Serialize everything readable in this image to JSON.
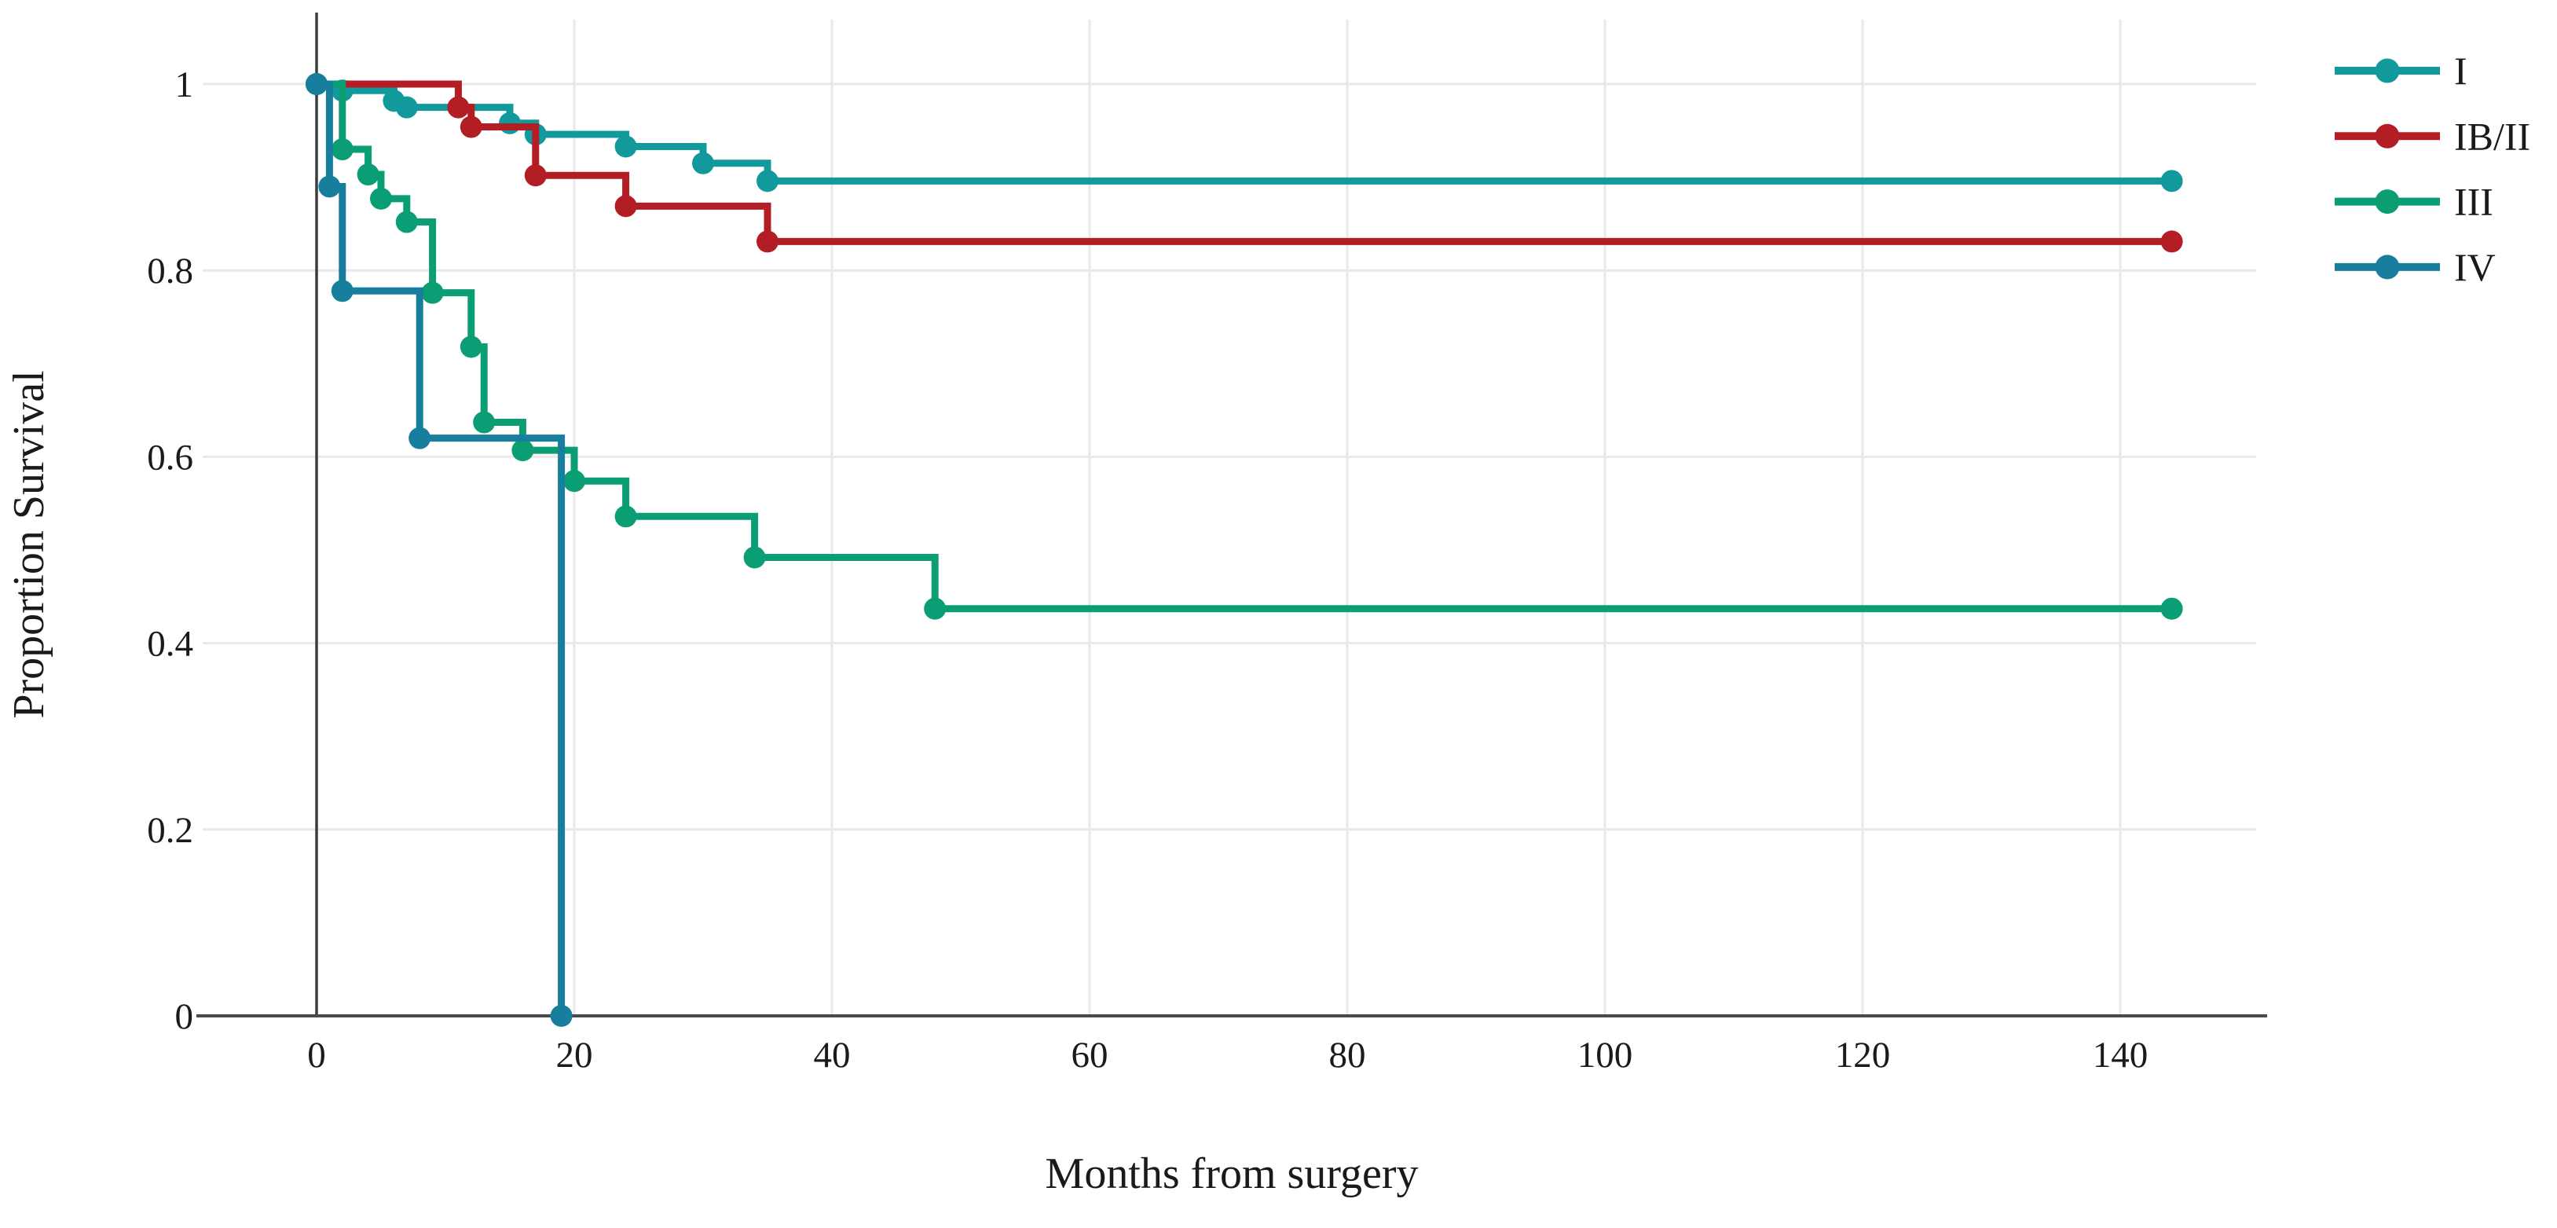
{
  "page": {
    "background": "#ffffff"
  },
  "chart_data": {
    "type": "line",
    "variant": "kaplan_meier_step",
    "title": "",
    "xlabel": "Months from surgery",
    "ylabel": "Proportion Survival",
    "xlim": [
      -9,
      150
    ],
    "ylim": [
      0,
      1
    ],
    "xticks": [
      0,
      20,
      40,
      60,
      80,
      100,
      120,
      140
    ],
    "yticks": [
      0,
      0.2,
      0.4,
      0.6,
      0.8,
      1
    ],
    "ytick_labels": [
      "0",
      "0.2",
      "0.4",
      "0.6",
      "0.8",
      "1"
    ],
    "grid": true,
    "legend_position": "top-right-outside",
    "marker": "circle",
    "theme": {
      "grid_color": "#e9e9e9",
      "axis_color": "#4a4a4a",
      "zero_line_color": "#3d3d3d",
      "text_color": "#1a1a1a",
      "background": "#ffffff"
    },
    "series": [
      {
        "name": "I",
        "color": "#12999b",
        "points": [
          [
            0,
            1
          ],
          [
            2,
            0.993
          ],
          [
            6,
            0.982
          ],
          [
            7,
            0.975
          ],
          [
            15,
            0.958
          ],
          [
            17,
            0.946
          ],
          [
            24,
            0.933
          ],
          [
            30,
            0.915
          ],
          [
            35,
            0.896
          ],
          [
            144,
            0.896
          ]
        ]
      },
      {
        "name": "IB/II",
        "color": "#b21e24",
        "points": [
          [
            0,
            1
          ],
          [
            11,
            0.975
          ],
          [
            12,
            0.954
          ],
          [
            17,
            0.902
          ],
          [
            24,
            0.869
          ],
          [
            35,
            0.831
          ],
          [
            144,
            0.831
          ]
        ]
      },
      {
        "name": "III",
        "color": "#0b9e74",
        "points": [
          [
            0,
            1
          ],
          [
            2,
            0.93
          ],
          [
            4,
            0.903
          ],
          [
            5,
            0.877
          ],
          [
            7,
            0.852
          ],
          [
            9,
            0.776
          ],
          [
            12,
            0.718
          ],
          [
            13,
            0.637
          ],
          [
            16,
            0.607
          ],
          [
            20,
            0.574
          ],
          [
            24,
            0.536
          ],
          [
            34,
            0.492
          ],
          [
            48,
            0.437
          ],
          [
            144,
            0.437
          ]
        ]
      },
      {
        "name": "IV",
        "color": "#177f9d",
        "points": [
          [
            0,
            1
          ],
          [
            1,
            0.89
          ],
          [
            2,
            0.778
          ],
          [
            8,
            0.62
          ],
          [
            19,
            0
          ]
        ]
      }
    ]
  }
}
